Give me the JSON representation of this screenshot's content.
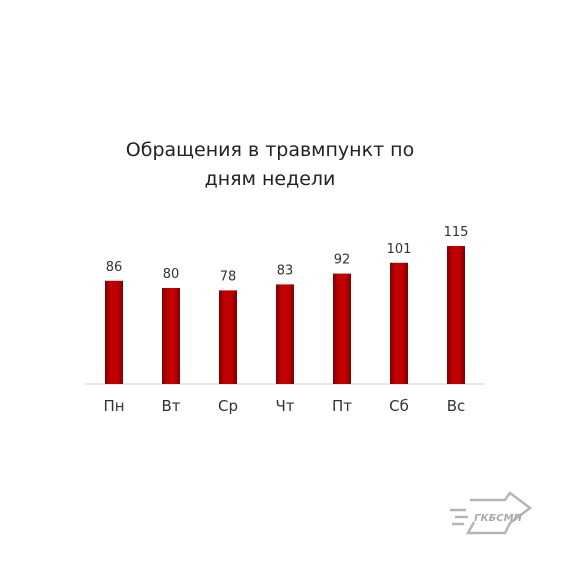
{
  "chart_data": {
    "type": "bar",
    "title": "Обращения в травмпункт по дням недели",
    "categories": [
      "Пн",
      "Вт",
      "Ср",
      "Чт",
      "Пт",
      "Сб",
      "Вс"
    ],
    "values": [
      86,
      80,
      78,
      83,
      92,
      101,
      115
    ],
    "color": "#c00000"
  },
  "logo": "ГКБСМП"
}
